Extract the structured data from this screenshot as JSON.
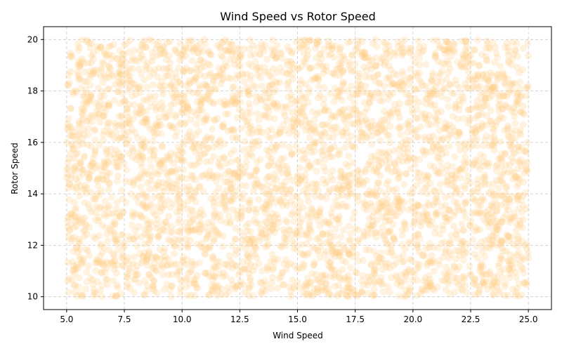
{
  "chart_data": {
    "type": "scatter",
    "title": "Wind Speed vs Rotor Speed",
    "xlabel": "Wind Speed",
    "ylabel": "Rotor Speed",
    "xlim": [
      4.0,
      26.0
    ],
    "ylim": [
      9.5,
      20.5
    ],
    "xticks": [
      5.0,
      7.5,
      10.0,
      12.5,
      15.0,
      17.5,
      20.0,
      22.5,
      25.0
    ],
    "xtick_labels": [
      "5.0",
      "7.5",
      "10.0",
      "12.5",
      "15.0",
      "17.5",
      "20.0",
      "22.5",
      "25.0"
    ],
    "yticks": [
      10,
      12,
      14,
      16,
      18,
      20
    ],
    "ytick_labels": [
      "10",
      "12",
      "14",
      "16",
      "18",
      "20"
    ],
    "grid": true,
    "point_color": "#ffcc80",
    "point_opacity": 0.25,
    "series": [
      {
        "x_range": [
          5.0,
          25.0
        ],
        "y_range": [
          10.0,
          20.0
        ],
        "distribution": "uniform"
      }
    ]
  }
}
